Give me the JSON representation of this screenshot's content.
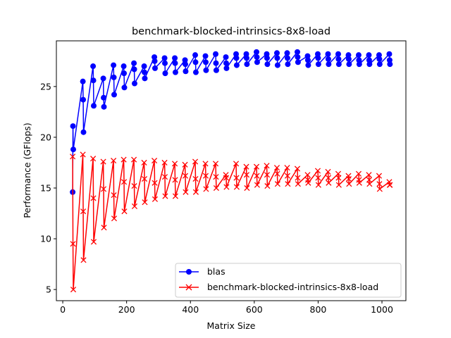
{
  "chart_data": {
    "type": "line",
    "title": "benchmark-blocked-intrinsics-8x8-load",
    "xlabel": "Matrix Size",
    "ylabel": "Performance (GFlops)",
    "xlim": [
      -20,
      1075
    ],
    "ylim": [
      3.9,
      29.5
    ],
    "xticks": [
      0,
      200,
      400,
      600,
      800,
      1000
    ],
    "yticks": [
      5,
      10,
      15,
      20,
      25
    ],
    "xtick_labels": [
      "0",
      "200",
      "400",
      "600",
      "800",
      "1000"
    ],
    "ytick_labels": [
      "5",
      "10",
      "15",
      "20",
      "25"
    ],
    "grid": false,
    "legend_position": "lower-right",
    "series": [
      {
        "name": "blas",
        "color": "#0000ff",
        "marker": "circle",
        "x": [
          31,
          32,
          33,
          63,
          64,
          65,
          95,
          96,
          97,
          127,
          128,
          129,
          159,
          160,
          161,
          191,
          192,
          193,
          223,
          224,
          225,
          255,
          256,
          257,
          287,
          288,
          289,
          319,
          320,
          321,
          351,
          352,
          353,
          383,
          384,
          385,
          415,
          416,
          417,
          447,
          448,
          449,
          479,
          480,
          481,
          511,
          512,
          513,
          543,
          544,
          545,
          575,
          576,
          577,
          607,
          608,
          609,
          639,
          640,
          641,
          671,
          672,
          673,
          703,
          704,
          705,
          735,
          736,
          737,
          767,
          768,
          769,
          799,
          800,
          801,
          831,
          832,
          833,
          863,
          864,
          865,
          895,
          896,
          897,
          927,
          928,
          929,
          959,
          960,
          961,
          991,
          992,
          993,
          1023,
          1024,
          1025
        ],
        "y": [
          14.6,
          21.1,
          18.8,
          25.5,
          23.7,
          20.5,
          27.0,
          25.6,
          23.1,
          25.8,
          23.9,
          23.0,
          27.1,
          25.9,
          24.2,
          27.0,
          26.3,
          24.9,
          27.3,
          26.7,
          25.3,
          27.0,
          26.4,
          25.8,
          27.9,
          27.5,
          26.8,
          27.8,
          27.3,
          26.3,
          27.8,
          27.3,
          26.4,
          27.6,
          27.2,
          26.5,
          28.1,
          27.4,
          26.4,
          28.0,
          27.4,
          26.6,
          28.2,
          27.3,
          26.6,
          27.9,
          27.3,
          26.8,
          28.2,
          27.8,
          27.1,
          28.2,
          27.8,
          27.2,
          28.4,
          27.9,
          27.4,
          28.2,
          27.8,
          27.2,
          28.3,
          27.8,
          27.1,
          28.3,
          27.8,
          27.2,
          28.4,
          27.9,
          27.4,
          28.0,
          27.6,
          27.1,
          28.2,
          27.8,
          27.2,
          28.2,
          27.7,
          27.2,
          28.2,
          27.7,
          27.2,
          28.1,
          27.7,
          27.2,
          28.1,
          27.6,
          27.2,
          28.1,
          27.6,
          27.2,
          28.1,
          27.7,
          27.2,
          28.2,
          27.6,
          27.2
        ]
      },
      {
        "name": "benchmark-blocked-intrinsics-8x8-load",
        "color": "#ff0000",
        "marker": "x",
        "x": [
          31,
          32,
          33,
          63,
          64,
          65,
          95,
          96,
          97,
          127,
          128,
          129,
          159,
          160,
          161,
          191,
          192,
          193,
          223,
          224,
          225,
          255,
          256,
          257,
          287,
          288,
          289,
          319,
          320,
          321,
          351,
          352,
          353,
          383,
          384,
          385,
          415,
          416,
          417,
          447,
          448,
          449,
          479,
          480,
          481,
          511,
          512,
          513,
          543,
          544,
          545,
          575,
          576,
          577,
          607,
          608,
          609,
          639,
          640,
          641,
          671,
          672,
          673,
          703,
          704,
          705,
          735,
          736,
          737,
          767,
          768,
          769,
          799,
          800,
          801,
          831,
          832,
          833,
          863,
          864,
          865,
          895,
          896,
          897,
          927,
          928,
          929,
          959,
          960,
          961,
          991,
          992,
          993,
          1023,
          1024,
          1025
        ],
        "y": [
          18.1,
          9.5,
          5.0,
          18.3,
          12.7,
          7.9,
          17.9,
          14.0,
          9.7,
          17.6,
          14.9,
          11.1,
          17.7,
          14.3,
          12.0,
          17.8,
          15.6,
          12.7,
          17.8,
          15.2,
          13.2,
          17.5,
          15.9,
          13.6,
          17.7,
          15.5,
          13.9,
          17.5,
          16.1,
          14.2,
          17.4,
          15.8,
          14.2,
          17.3,
          16.2,
          14.6,
          17.6,
          15.9,
          14.6,
          17.4,
          16.2,
          14.9,
          17.4,
          16.1,
          15.0,
          16.3,
          16.0,
          15.1,
          17.4,
          16.0,
          15.1,
          17.1,
          16.3,
          15.0,
          17.1,
          16.2,
          15.3,
          17.2,
          16.3,
          15.2,
          17.0,
          16.4,
          15.4,
          17.0,
          16.2,
          15.4,
          16.9,
          16.0,
          15.4,
          16.3,
          15.8,
          15.5,
          16.7,
          16.0,
          15.3,
          16.6,
          16.0,
          15.5,
          16.4,
          16.0,
          15.3,
          16.2,
          15.9,
          15.4,
          16.4,
          15.8,
          15.5,
          16.3,
          15.8,
          15.4,
          16.2,
          15.4,
          14.9,
          15.6,
          15.3,
          15.3
        ]
      }
    ]
  }
}
